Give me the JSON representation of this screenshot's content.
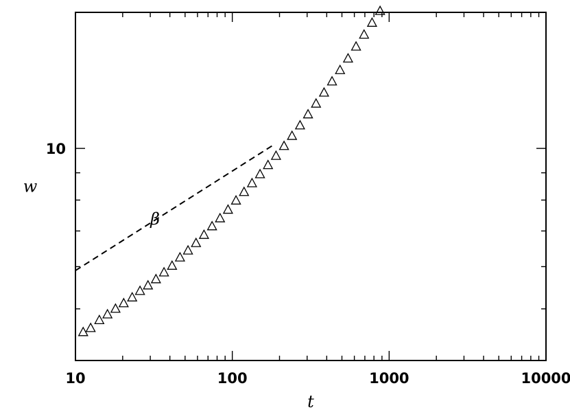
{
  "chart_data": {
    "type": "scatter",
    "title": "",
    "xlabel": "t",
    "ylabel": "w",
    "xscale": "log",
    "yscale": "log",
    "xlim": [
      10,
      10000
    ],
    "ylim": [
      4,
      18
    ],
    "x_tick_labels": [
      "10",
      "100",
      "1000",
      "10000"
    ],
    "x_ticks": [
      10,
      100,
      1000,
      10000
    ],
    "y_tick_labels": [
      "10"
    ],
    "y_ticks": [
      10
    ],
    "grid": false,
    "annotations": [
      {
        "text": "β",
        "type": "dashed-guide-line",
        "x": [
          10,
          180
        ],
        "y": [
          5.9,
          10.12
        ]
      }
    ],
    "series": [
      {
        "marker": "triangle",
        "points": [
          [
            11.2,
            4.52
          ],
          [
            12.5,
            4.6
          ],
          [
            14.2,
            4.76
          ],
          [
            16.0,
            4.88
          ],
          [
            18.0,
            5.0
          ],
          [
            20.3,
            5.12
          ],
          [
            23.0,
            5.25
          ],
          [
            25.8,
            5.4
          ],
          [
            29.0,
            5.53
          ],
          [
            32.6,
            5.68
          ],
          [
            36.7,
            5.85
          ],
          [
            41.3,
            6.02
          ],
          [
            46.4,
            6.24
          ],
          [
            52.2,
            6.43
          ],
          [
            58.7,
            6.64
          ],
          [
            66.0,
            6.88
          ],
          [
            74.3,
            7.14
          ],
          [
            83.5,
            7.39
          ],
          [
            93.9,
            7.67
          ],
          [
            105.6,
            7.98
          ],
          [
            118.8,
            8.28
          ],
          [
            133.6,
            8.6
          ],
          [
            150.2,
            8.94
          ],
          [
            168.9,
            9.3
          ],
          [
            190.0,
            9.68
          ],
          [
            213.7,
            10.1
          ],
          [
            240.3,
            10.55
          ],
          [
            270.3,
            11.04
          ],
          [
            304.0,
            11.58
          ],
          [
            341.9,
            12.13
          ],
          [
            384.5,
            12.72
          ],
          [
            432.4,
            13.35
          ],
          [
            486.3,
            14.02
          ],
          [
            547.0,
            14.74
          ],
          [
            615.2,
            15.52
          ],
          [
            691.9,
            16.34
          ],
          [
            778.1,
            17.2
          ],
          [
            875.2,
            18.1
          ]
        ],
        "points_note": ""
      }
    ]
  }
}
